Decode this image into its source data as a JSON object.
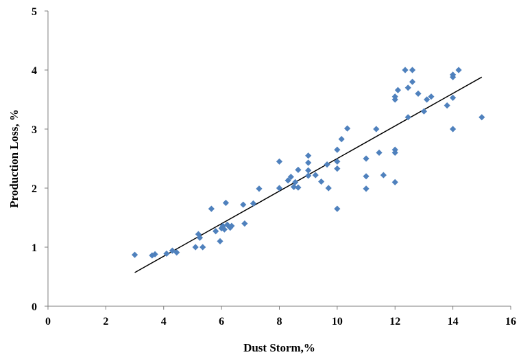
{
  "chart_data": {
    "type": "scatter",
    "title": "",
    "xlabel": "Dust Storm,%",
    "ylabel": "Production Loss, %",
    "xlim": [
      0,
      16
    ],
    "ylim": [
      0,
      5
    ],
    "x_ticks": [
      0,
      2,
      4,
      6,
      8,
      10,
      12,
      14,
      16
    ],
    "y_ticks": [
      0,
      1,
      2,
      3,
      4,
      5
    ],
    "grid": false,
    "legend": "none",
    "marker_color": "#4F81BD",
    "trendline": {
      "x": [
        3,
        15
      ],
      "y": [
        0.57,
        3.88
      ],
      "color": "#000000"
    },
    "points": [
      {
        "x": 3.0,
        "y": 0.87
      },
      {
        "x": 3.6,
        "y": 0.86
      },
      {
        "x": 3.7,
        "y": 0.88
      },
      {
        "x": 4.1,
        "y": 0.89
      },
      {
        "x": 4.3,
        "y": 0.94
      },
      {
        "x": 4.45,
        "y": 0.91
      },
      {
        "x": 5.1,
        "y": 1.0
      },
      {
        "x": 5.2,
        "y": 1.22
      },
      {
        "x": 5.25,
        "y": 1.16
      },
      {
        "x": 5.35,
        "y": 1.0
      },
      {
        "x": 5.65,
        "y": 1.65
      },
      {
        "x": 5.8,
        "y": 1.27
      },
      {
        "x": 5.95,
        "y": 1.1
      },
      {
        "x": 6.0,
        "y": 1.32
      },
      {
        "x": 6.05,
        "y": 1.36
      },
      {
        "x": 6.1,
        "y": 1.3
      },
      {
        "x": 6.15,
        "y": 1.75
      },
      {
        "x": 6.2,
        "y": 1.38
      },
      {
        "x": 6.3,
        "y": 1.33
      },
      {
        "x": 6.35,
        "y": 1.36
      },
      {
        "x": 6.75,
        "y": 1.72
      },
      {
        "x": 6.8,
        "y": 1.4
      },
      {
        "x": 7.1,
        "y": 1.74
      },
      {
        "x": 7.3,
        "y": 1.99
      },
      {
        "x": 8.0,
        "y": 2.45
      },
      {
        "x": 8.0,
        "y": 2.0
      },
      {
        "x": 8.3,
        "y": 2.13
      },
      {
        "x": 8.4,
        "y": 2.19
      },
      {
        "x": 8.5,
        "y": 2.02
      },
      {
        "x": 8.55,
        "y": 2.1
      },
      {
        "x": 8.65,
        "y": 2.31
      },
      {
        "x": 8.65,
        "y": 2.01
      },
      {
        "x": 9.0,
        "y": 2.55
      },
      {
        "x": 9.0,
        "y": 2.43
      },
      {
        "x": 9.0,
        "y": 2.3
      },
      {
        "x": 9.0,
        "y": 2.21
      },
      {
        "x": 9.25,
        "y": 2.22
      },
      {
        "x": 9.45,
        "y": 2.11
      },
      {
        "x": 9.65,
        "y": 2.4
      },
      {
        "x": 9.7,
        "y": 2.0
      },
      {
        "x": 10.0,
        "y": 2.65
      },
      {
        "x": 10.0,
        "y": 2.45
      },
      {
        "x": 10.0,
        "y": 2.33
      },
      {
        "x": 10.0,
        "y": 1.65
      },
      {
        "x": 10.15,
        "y": 2.83
      },
      {
        "x": 10.35,
        "y": 3.01
      },
      {
        "x": 11.0,
        "y": 2.5
      },
      {
        "x": 11.0,
        "y": 2.2
      },
      {
        "x": 11.0,
        "y": 1.99
      },
      {
        "x": 11.35,
        "y": 3.0
      },
      {
        "x": 11.45,
        "y": 2.6
      },
      {
        "x": 11.6,
        "y": 2.22
      },
      {
        "x": 12.0,
        "y": 3.55
      },
      {
        "x": 12.0,
        "y": 3.5
      },
      {
        "x": 12.0,
        "y": 2.65
      },
      {
        "x": 12.0,
        "y": 2.6
      },
      {
        "x": 12.0,
        "y": 2.1
      },
      {
        "x": 12.1,
        "y": 3.66
      },
      {
        "x": 12.35,
        "y": 4.0
      },
      {
        "x": 12.45,
        "y": 3.7
      },
      {
        "x": 12.45,
        "y": 3.2
      },
      {
        "x": 12.6,
        "y": 4.0
      },
      {
        "x": 12.6,
        "y": 3.8
      },
      {
        "x": 12.8,
        "y": 3.6
      },
      {
        "x": 13.0,
        "y": 3.3
      },
      {
        "x": 13.1,
        "y": 3.5
      },
      {
        "x": 13.25,
        "y": 3.55
      },
      {
        "x": 13.8,
        "y": 3.4
      },
      {
        "x": 14.0,
        "y": 3.92
      },
      {
        "x": 14.0,
        "y": 3.88
      },
      {
        "x": 14.0,
        "y": 3.53
      },
      {
        "x": 14.0,
        "y": 3.0
      },
      {
        "x": 14.2,
        "y": 4.0
      },
      {
        "x": 15.0,
        "y": 3.2
      }
    ]
  }
}
